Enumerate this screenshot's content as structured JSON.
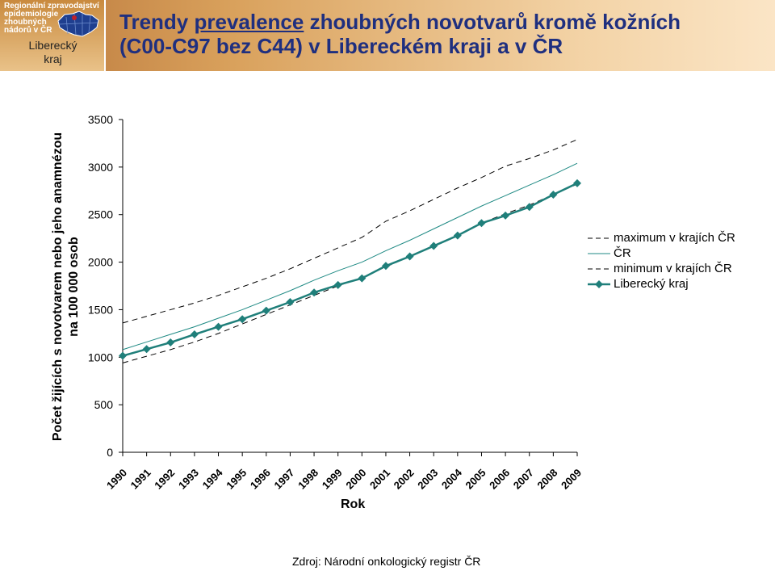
{
  "header": {
    "logo_line1": "Regionální zpravodajství",
    "logo_line2": "epidemiologie",
    "logo_line3": "zhoubných",
    "logo_line4": "nádorů v ČR",
    "region_line1": "Liberecký",
    "region_line2": "kraj",
    "title_part1": "Trendy ",
    "title_underlined": "prevalence",
    "title_part2": " zhoubných novotvarů kromě kožních",
    "title_line2": "(C00-C97 bez C44) v Libereckém kraji a v ČR",
    "colors": {
      "title": "#1f2f7f",
      "header_dark": "#b9763a",
      "header_light": "#fbe5c6"
    }
  },
  "chart_data": {
    "type": "line",
    "categories": [
      "1990",
      "1991",
      "1992",
      "1993",
      "1994",
      "1995",
      "1996",
      "1997",
      "1998",
      "1999",
      "2000",
      "2001",
      "2002",
      "2003",
      "2004",
      "2005",
      "2006",
      "2007",
      "2008",
      "2009"
    ],
    "series": [
      {
        "name": "maximum v krajích ČR",
        "style": "dashed",
        "color": "#000000",
        "values": [
          1360,
          1430,
          1500,
          1570,
          1650,
          1740,
          1830,
          1930,
          2040,
          2150,
          2260,
          2430,
          2540,
          2660,
          2780,
          2890,
          3010,
          3090,
          3180,
          3290
        ]
      },
      {
        "name": "ČR",
        "style": "solid",
        "color": "#1f8a84",
        "values": [
          1080,
          1160,
          1240,
          1320,
          1410,
          1500,
          1600,
          1700,
          1810,
          1910,
          2000,
          2120,
          2230,
          2350,
          2470,
          2590,
          2700,
          2810,
          2920,
          3040
        ]
      },
      {
        "name": "minimum v krajích ČR",
        "style": "dashed",
        "color": "#000000",
        "values": [
          940,
          1010,
          1080,
          1160,
          1250,
          1350,
          1450,
          1550,
          1650,
          1750,
          1840,
          1950,
          2060,
          2170,
          2280,
          2410,
          2510,
          2600,
          2710,
          2820
        ]
      },
      {
        "name": "Liberecký kraj",
        "style": "solid-marker",
        "color": "#1f7f7a",
        "values": [
          1015,
          1085,
          1155,
          1240,
          1320,
          1400,
          1490,
          1580,
          1680,
          1760,
          1830,
          1960,
          2060,
          2170,
          2280,
          2410,
          2490,
          2580,
          2710,
          2830
        ]
      }
    ],
    "ylim": [
      0,
      3500
    ],
    "yticks": [
      "0",
      "500",
      "1000",
      "1500",
      "2000",
      "2500",
      "3000",
      "3500"
    ],
    "xlabel": "Rok",
    "ylabel_line1": "Počet žijících s novotvarem nebo jeho anamnézou",
    "ylabel_line2": "na 100 000 osob",
    "grid": false,
    "legend_position": "right"
  },
  "source": "Zdroj: Národní onkologický registr ČR"
}
